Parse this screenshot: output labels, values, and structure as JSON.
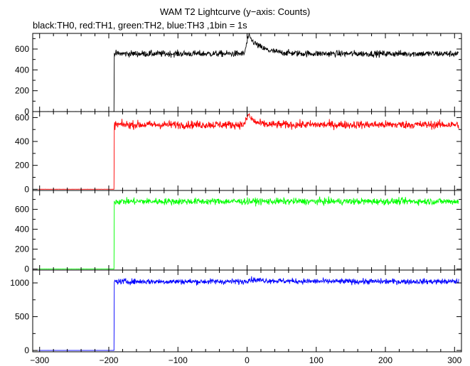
{
  "title": "WAM T2 Lightcurve (y−axis: Counts)",
  "subtitle": "black:TH0, red:TH1, green:TH2, blue:TH3 ,1bin = 1s",
  "chart_data": [
    {
      "type": "line",
      "series": [
        {
          "color": "#000000",
          "pre_level": 0,
          "post_level": 555,
          "noise": 22,
          "peak": {
            "x": 2,
            "amplitude": 170,
            "decay": 18
          }
        }
      ],
      "xlim": [
        -310,
        310
      ],
      "ylim": [
        0,
        750
      ],
      "yticks": [
        0,
        200,
        400,
        600
      ],
      "step_x": -192
    },
    {
      "type": "line",
      "series": [
        {
          "color": "#ff0000",
          "pre_level": 0,
          "post_level": 540,
          "noise": 24,
          "peak": {
            "x": 2,
            "amplitude": 85,
            "decay": 8
          }
        }
      ],
      "xlim": [
        -310,
        310
      ],
      "ylim": [
        -10,
        650
      ],
      "yticks": [
        0,
        200,
        400,
        600
      ],
      "step_x": -192
    },
    {
      "type": "line",
      "series": [
        {
          "color": "#00ff00",
          "pre_level": 0,
          "post_level": 680,
          "noise": 24,
          "peak": {
            "x": 2,
            "amplitude": 0,
            "decay": 5
          }
        }
      ],
      "xlim": [
        -310,
        310
      ],
      "ylim": [
        -10,
        790
      ],
      "yticks": [
        0,
        200,
        400,
        600
      ],
      "step_x": -192
    },
    {
      "type": "line",
      "series": [
        {
          "color": "#0000ff",
          "pre_level": 0,
          "post_level": 1020,
          "noise": 30,
          "peak": {
            "x": 2,
            "amplitude": 30,
            "decay": 40
          }
        }
      ],
      "xlim": [
        -310,
        310
      ],
      "ylim": [
        -20,
        1190
      ],
      "yticks": [
        0,
        500,
        1000
      ],
      "step_x": -192
    }
  ],
  "xticks": [
    -300,
    -200,
    -100,
    0,
    100,
    200,
    300
  ]
}
